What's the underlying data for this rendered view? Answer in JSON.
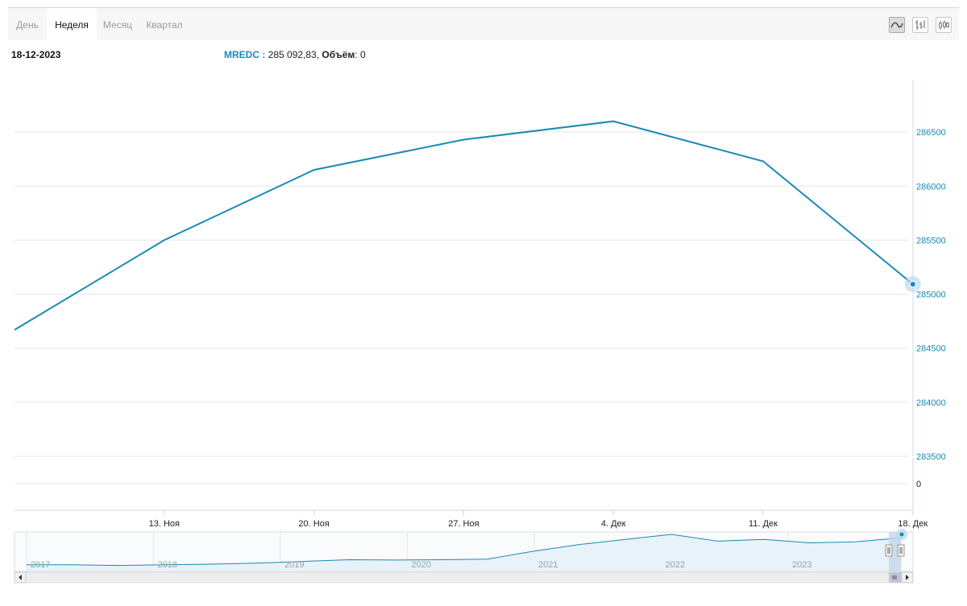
{
  "tabs": [
    {
      "label": "День",
      "active": false
    },
    {
      "label": "Неделя",
      "active": true
    },
    {
      "label": "Месяц",
      "active": false
    },
    {
      "label": "Квартал",
      "active": false
    }
  ],
  "tools": [
    {
      "icon": "line-chart-icon",
      "selected": true
    },
    {
      "icon": "ohlc-bars-icon",
      "selected": false
    },
    {
      "icon": "candlestick-icon",
      "selected": false
    }
  ],
  "header": {
    "date": "18-12-2023",
    "ticker": "MREDC",
    "separator": " : ",
    "value": "285 092,83",
    "volume_label": "Объём",
    "volume_value": "0"
  },
  "colors": {
    "line": "#1a8ab5",
    "axis_text": "#1a8ab5",
    "grid": "#e6e6e6"
  },
  "chart_data": [
    {
      "type": "line",
      "series": [
        {
          "values": [
            284670,
            285500,
            286150,
            286430,
            286600,
            286230,
            285092.83
          ]
        }
      ],
      "x": [
        "2023-11-06",
        "2023-11-13",
        "2023-11-20",
        "2023-11-27",
        "2023-12-04",
        "2023-12-11",
        "2023-12-18"
      ],
      "x_tick_labels": [
        "13. Ноя",
        "20. Ноя",
        "27. Ноя",
        "4. Дек",
        "11. Дек",
        "18. Дек"
      ],
      "y_ticks": [
        283500,
        284000,
        284500,
        285000,
        285500,
        286000,
        286500
      ],
      "ylim": [
        283500,
        286985
      ],
      "y_axis_side": "right",
      "grid": true,
      "highlight_last_point": true
    },
    {
      "type": "bar",
      "title": "",
      "y_ticks": [
        0
      ],
      "values": [
        0,
        0,
        0,
        0,
        0,
        0,
        0
      ]
    },
    {
      "type": "area",
      "role": "navigator",
      "x_tick_labels": [
        "2017",
        "2018",
        "2019",
        "2020",
        "2021",
        "2022",
        "2023"
      ],
      "values": [
        0.1,
        0.1,
        0.08,
        0.1,
        0.12,
        0.15,
        0.2,
        0.25,
        0.24,
        0.25,
        0.27,
        0.5,
        0.7,
        0.85,
        1.0,
        0.8,
        0.85,
        0.75,
        0.78,
        0.9
      ]
    }
  ]
}
